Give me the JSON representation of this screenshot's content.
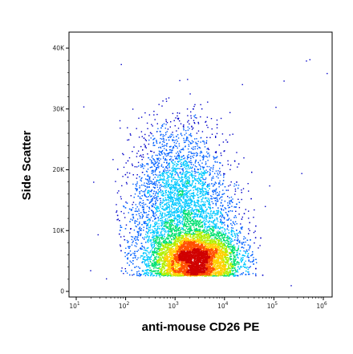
{
  "chart_data": {
    "type": "scatter",
    "style": "flow-cytometry density dot plot (pseudocolor)",
    "xlabel": "anti-mouse CD26 PE",
    "ylabel": "Side Scatter",
    "x_scale": "log",
    "xlim": [
      10,
      1000000
    ],
    "y_scale": "linear",
    "ylim": [
      0,
      44000
    ],
    "x_ticks": [
      {
        "value": 10,
        "base": "10",
        "exp": "1"
      },
      {
        "value": 100,
        "base": "10",
        "exp": "2"
      },
      {
        "value": 1000,
        "base": "10",
        "exp": "3"
      },
      {
        "value": 10000,
        "base": "10",
        "exp": "4"
      },
      {
        "value": 100000,
        "base": "10",
        "exp": "5"
      },
      {
        "value": 1000000,
        "base": "10",
        "exp": "6"
      }
    ],
    "y_ticks": [
      {
        "value": 0,
        "label": "0"
      },
      {
        "value": 10000,
        "label": "10K"
      },
      {
        "value": 20000,
        "label": "20K"
      },
      {
        "value": 30000,
        "label": "30K"
      },
      {
        "value": 40000,
        "label": "40K"
      }
    ],
    "grid": false,
    "legend": "none",
    "density_colors": [
      "#0000c8",
      "#0060ff",
      "#00c8ff",
      "#00e070",
      "#b0f000",
      "#ffd000",
      "#ff5000",
      "#d00000"
    ],
    "populations": [
      {
        "center_x": 2500,
        "center_y": 5500,
        "spread_log_x": 0.45,
        "spread_y": 2200,
        "weight": 0.62
      },
      {
        "center_x": 1500,
        "center_y": 11000,
        "spread_log_x": 0.55,
        "spread_y": 5000,
        "weight": 0.28
      },
      {
        "center_x": 1100,
        "center_y": 19000,
        "spread_log_x": 0.45,
        "spread_y": 5000,
        "weight": 0.1
      }
    ],
    "peak": {
      "x": 4500,
      "y": 5000
    }
  }
}
